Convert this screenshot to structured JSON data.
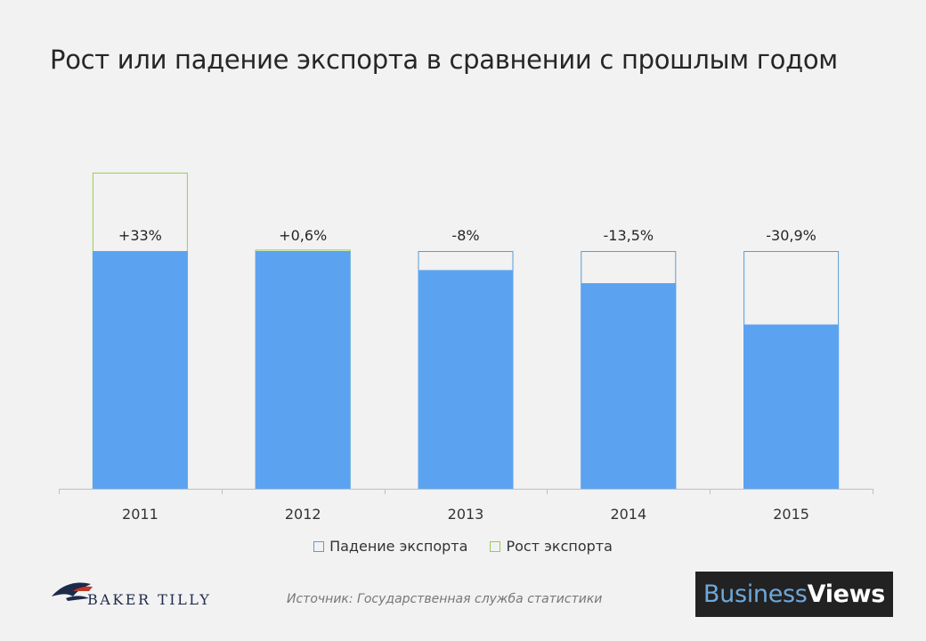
{
  "title": "Рост или падение экспорта в сравнении с прошлым годом",
  "colors": {
    "fill": "#5ba3f0",
    "decline_outline": "#5b9bd5",
    "growth_outline": "#92d050",
    "axis": "#bfbfbf"
  },
  "chart_data": {
    "type": "bar",
    "categories": [
      "2011",
      "2012",
      "2013",
      "2014",
      "2015"
    ],
    "baseline_value": 100,
    "current_values": [
      133,
      100.6,
      92,
      86.5,
      69.1
    ],
    "change_labels": [
      "+33%",
      "+0,6%",
      "-8%",
      "-13,5%",
      "-30,9%"
    ],
    "legend": [
      "Падение экспорта",
      "Рост экспорта"
    ],
    "ylim": [
      0,
      140
    ]
  },
  "legend": {
    "decline": "Падение экспорта",
    "growth": "Рост экспорта"
  },
  "footer": {
    "logo": "BAKER TILLY",
    "source": "Источник: Государственная служба статистики",
    "brand_part1": "Business",
    "brand_part2": "Views"
  }
}
